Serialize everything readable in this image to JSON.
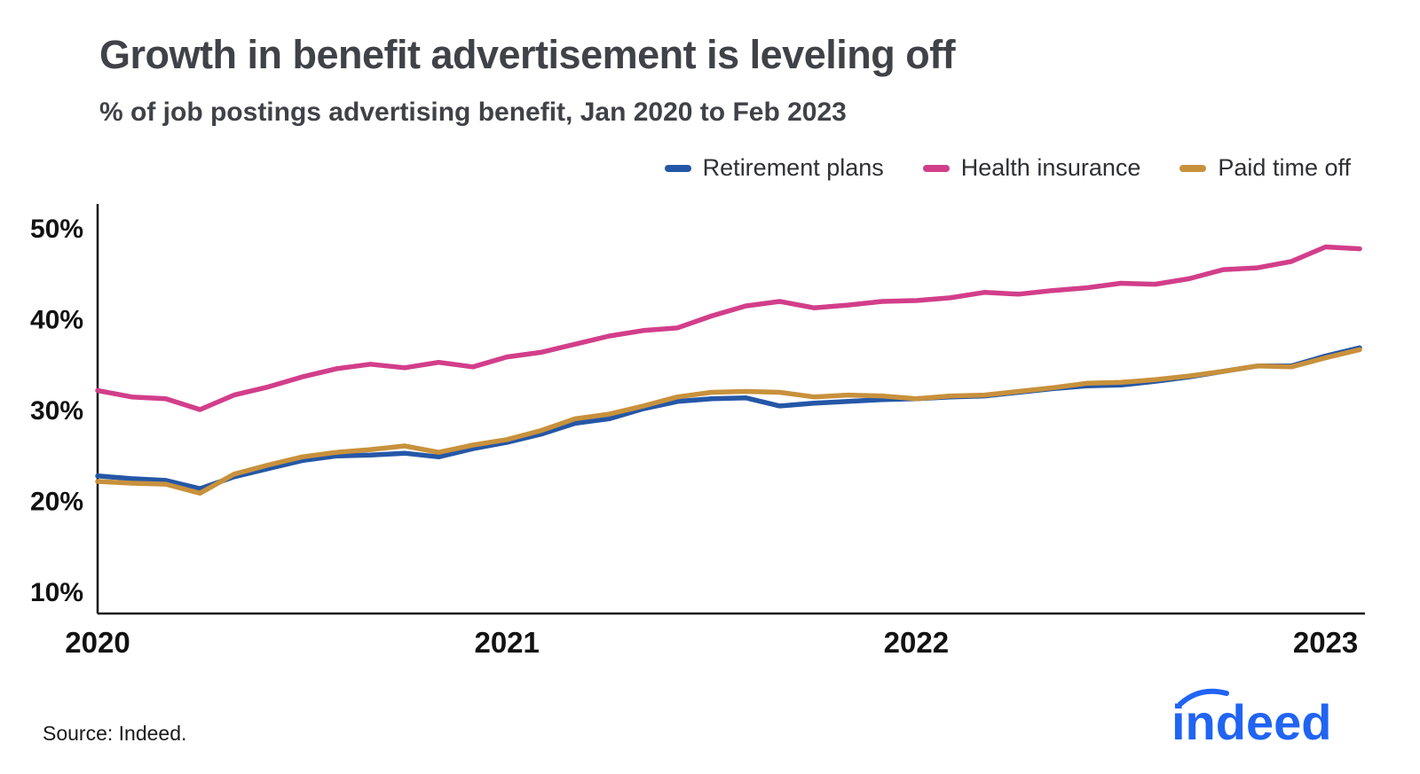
{
  "header": {
    "title": "Growth in benefit advertisement is leveling off",
    "subtitle": "% of job postings advertising benefit, Jan 2020 to Feb 2023"
  },
  "legend": [
    {
      "label": "Retirement plans",
      "color": "#2557a7"
    },
    {
      "label": "Health insurance",
      "color": "#d23e8a"
    },
    {
      "label": "Paid time off",
      "color": "#c8913c"
    }
  ],
  "source": "Source: Indeed.",
  "logo_text": "indeed",
  "logo_color": "#2164f3",
  "chart_data": {
    "type": "line",
    "title": "Growth in benefit advertisement is leveling off",
    "subtitle": "% of job postings advertising benefit, Jan 2020 to Feb 2023",
    "x": [
      "Jan 2020",
      "Feb 2020",
      "Mar 2020",
      "Apr 2020",
      "May 2020",
      "Jun 2020",
      "Jul 2020",
      "Aug 2020",
      "Sep 2020",
      "Oct 2020",
      "Nov 2020",
      "Dec 2020",
      "Jan 2021",
      "Feb 2021",
      "Mar 2021",
      "Apr 2021",
      "May 2021",
      "Jun 2021",
      "Jul 2021",
      "Aug 2021",
      "Sep 2021",
      "Oct 2021",
      "Nov 2021",
      "Dec 2021",
      "Jan 2022",
      "Feb 2022",
      "Mar 2022",
      "Apr 2022",
      "May 2022",
      "Jun 2022",
      "Jul 2022",
      "Aug 2022",
      "Sep 2022",
      "Oct 2022",
      "Nov 2022",
      "Dec 2022",
      "Jan 2023",
      "Feb 2023"
    ],
    "x_ticks": [
      {
        "index": 0,
        "label": "2020"
      },
      {
        "index": 12,
        "label": "2021"
      },
      {
        "index": 24,
        "label": "2022"
      },
      {
        "index": 36,
        "label": "2023"
      }
    ],
    "ylabel": "% of job postings advertising benefit",
    "ylim": [
      10,
      50
    ],
    "y_ticks": [
      10,
      20,
      30,
      40,
      50
    ],
    "grid": false,
    "legend_position": "top-right",
    "series": [
      {
        "name": "Retirement plans",
        "color": "#2557a7",
        "values": [
          22.7,
          22.4,
          22.2,
          21.3,
          22.6,
          23.5,
          24.4,
          24.9,
          25.0,
          25.2,
          24.8,
          25.7,
          26.4,
          27.3,
          28.5,
          29.0,
          30.1,
          30.9,
          31.2,
          31.3,
          30.4,
          30.7,
          30.9,
          31.1,
          31.2,
          31.4,
          31.5,
          31.9,
          32.3,
          32.6,
          32.7,
          33.1,
          33.6,
          34.2,
          34.8,
          34.8,
          35.9,
          36.8
        ]
      },
      {
        "name": "Health insurance",
        "color": "#d23e8a",
        "values": [
          32.1,
          31.4,
          31.2,
          30.0,
          31.6,
          32.5,
          33.6,
          34.5,
          35.0,
          34.6,
          35.2,
          34.7,
          35.8,
          36.3,
          37.2,
          38.1,
          38.7,
          39.0,
          40.3,
          41.4,
          41.9,
          41.2,
          41.5,
          41.9,
          42.0,
          42.3,
          42.9,
          42.7,
          43.1,
          43.4,
          43.9,
          43.8,
          44.4,
          45.4,
          45.6,
          46.3,
          47.9,
          47.7
        ]
      },
      {
        "name": "Paid time off",
        "color": "#c8913c",
        "values": [
          22.1,
          21.9,
          21.8,
          20.8,
          22.9,
          23.9,
          24.8,
          25.3,
          25.6,
          26.0,
          25.3,
          26.1,
          26.7,
          27.7,
          29.0,
          29.5,
          30.4,
          31.4,
          31.9,
          32.0,
          31.9,
          31.4,
          31.6,
          31.5,
          31.2,
          31.5,
          31.6,
          32.0,
          32.4,
          32.9,
          33.0,
          33.3,
          33.7,
          34.2,
          34.8,
          34.7,
          35.7,
          36.6
        ]
      }
    ]
  }
}
